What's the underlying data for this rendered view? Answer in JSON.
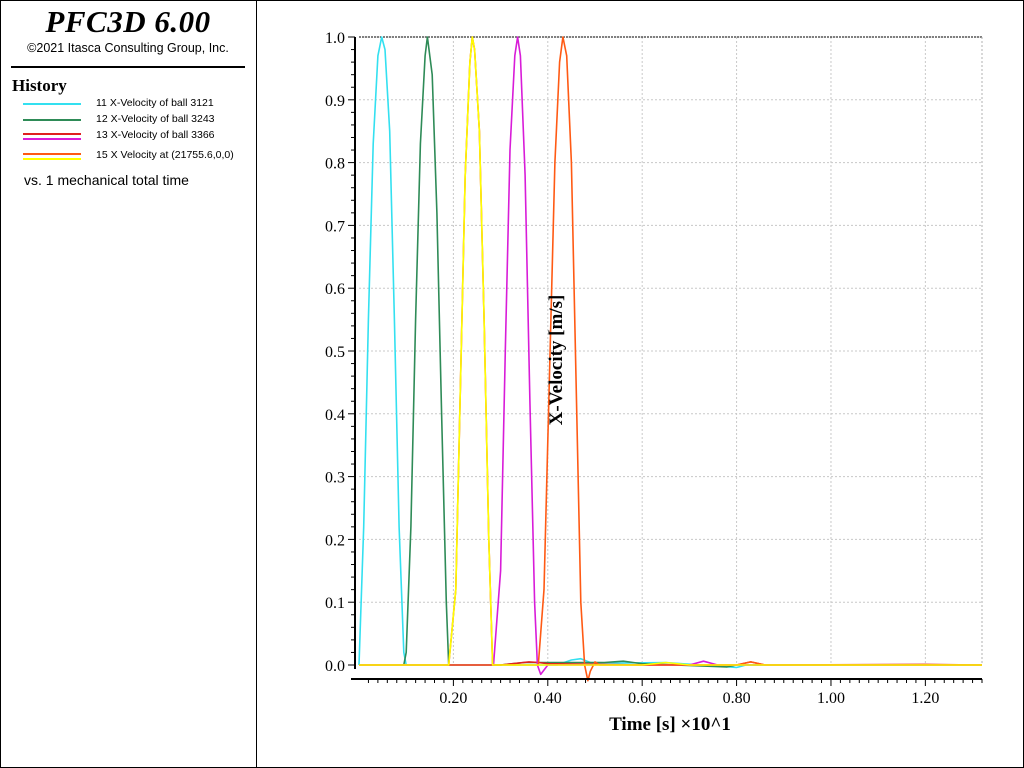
{
  "app": {
    "title": "PFC3D 6.00",
    "copyright": "©2021 Itasca Consulting Group, Inc."
  },
  "legend": {
    "heading": "History",
    "items": [
      {
        "label": "11 X-Velocity of ball 3121",
        "colors": [
          "#33e0f0"
        ]
      },
      {
        "label": "12 X-Velocity of ball 3243",
        "colors": [
          "#2e8b57"
        ]
      },
      {
        "label": "13 X-Velocity of ball 3366",
        "colors": [
          "#e02020",
          "#d81cd8"
        ]
      },
      {
        "label": "15 X Velocity at (21755.6,0,0)",
        "colors": [
          "#ff5a14",
          "#ffff00"
        ]
      }
    ],
    "vs_label": "vs. 1 mechanical total time"
  },
  "chart_data": {
    "type": "line",
    "xlabel": "Time [s] ×10^1",
    "ylabel": "X-Velocity [m/s]",
    "xlim": [
      0.0,
      1.32
    ],
    "ylim": [
      0.0,
      1.0
    ],
    "x_ticks": [
      0.2,
      0.4,
      0.6,
      0.8,
      1.0,
      1.2
    ],
    "x_tick_labels": [
      "0.20",
      "0.40",
      "0.60",
      "0.80",
      "1.00",
      "1.20"
    ],
    "y_ticks": [
      0.0,
      0.1,
      0.2,
      0.3,
      0.4,
      0.5,
      0.6,
      0.7,
      0.8,
      0.9,
      1.0
    ],
    "y_tick_labels": [
      "0.0",
      "0.1",
      "0.2",
      "0.3",
      "0.4",
      "0.5",
      "0.6",
      "0.7",
      "0.8",
      "0.9",
      "1.0"
    ],
    "grid": true,
    "series": [
      {
        "name": "11 X-Velocity of ball 3121",
        "color": "#33e0f0",
        "x": [
          0.0,
          0.01,
          0.02,
          0.03,
          0.04,
          0.048,
          0.055,
          0.065,
          0.075,
          0.085,
          0.095,
          0.1,
          0.2,
          0.42,
          0.45,
          0.47,
          0.49,
          0.55,
          0.65,
          0.8,
          0.82,
          1.0,
          1.32
        ],
        "y": [
          0.0,
          0.22,
          0.55,
          0.83,
          0.97,
          1.0,
          0.98,
          0.85,
          0.55,
          0.22,
          0.02,
          0.0,
          0.0,
          0.0,
          0.008,
          0.01,
          0.004,
          0.003,
          0.004,
          -0.004,
          0.0,
          0.0,
          0.0
        ]
      },
      {
        "name": "12 X-Velocity of ball 3243",
        "color": "#2e8b57",
        "x": [
          0.0,
          0.095,
          0.1,
          0.11,
          0.12,
          0.13,
          0.14,
          0.145,
          0.155,
          0.165,
          0.175,
          0.185,
          0.19,
          0.3,
          0.35,
          0.52,
          0.56,
          0.6,
          0.78,
          0.8,
          1.32
        ],
        "y": [
          0.0,
          0.0,
          0.02,
          0.22,
          0.55,
          0.83,
          0.97,
          1.0,
          0.94,
          0.72,
          0.4,
          0.1,
          0.0,
          0.0,
          0.004,
          0.004,
          0.006,
          0.002,
          -0.003,
          0.0,
          0.0
        ]
      },
      {
        "name": "13 X-Velocity of ball 3366",
        "color": "#e02020",
        "x": [
          0.0,
          0.19,
          0.205,
          0.215,
          0.225,
          0.235,
          0.24,
          0.245,
          0.255,
          0.265,
          0.275,
          0.283,
          0.3,
          0.36,
          0.38,
          0.4,
          0.6,
          0.8,
          0.83,
          0.86,
          1.2,
          1.32
        ],
        "y": [
          0.0,
          0.0,
          0.12,
          0.45,
          0.78,
          0.96,
          1.0,
          0.98,
          0.85,
          0.55,
          0.2,
          0.0,
          0.0,
          0.005,
          0.004,
          0.002,
          0.0,
          0.0,
          0.005,
          0.0,
          0.001,
          0.0
        ]
      },
      {
        "name": "13 X-Velocity of ball 3366",
        "color": "#d81cd8",
        "x": [
          0.0,
          0.285,
          0.3,
          0.31,
          0.32,
          0.33,
          0.336,
          0.342,
          0.352,
          0.362,
          0.372,
          0.378,
          0.385,
          0.4,
          0.45,
          0.7,
          0.73,
          0.76,
          0.85,
          1.0,
          1.32
        ],
        "y": [
          0.0,
          0.0,
          0.15,
          0.5,
          0.82,
          0.97,
          1.0,
          0.97,
          0.78,
          0.42,
          0.1,
          0.0,
          -0.015,
          0.0,
          0.0,
          0.0,
          0.006,
          0.0,
          0.0,
          0.0,
          0.0
        ]
      },
      {
        "name": "15 X Velocity at (21755.6,0,0)",
        "color": "#ff5a14",
        "x": [
          0.0,
          0.38,
          0.392,
          0.405,
          0.415,
          0.425,
          0.432,
          0.44,
          0.45,
          0.46,
          0.47,
          0.478,
          0.485,
          0.49,
          0.5,
          0.51,
          0.55,
          0.8,
          0.83,
          0.86,
          1.32
        ],
        "y": [
          0.0,
          0.0,
          0.12,
          0.5,
          0.8,
          0.96,
          1.0,
          0.97,
          0.8,
          0.45,
          0.1,
          0.0,
          -0.025,
          -0.01,
          0.005,
          0.0,
          0.0,
          0.0,
          0.005,
          0.0,
          0.0
        ]
      },
      {
        "name": "15 X Velocity at (21755.6,0,0)",
        "color": "#ffff00",
        "x": [
          0.0,
          0.19,
          0.205,
          0.215,
          0.225,
          0.235,
          0.24,
          0.245,
          0.255,
          0.265,
          0.275,
          0.283,
          0.3,
          0.6,
          0.65,
          0.7,
          1.32
        ],
        "y": [
          0.0,
          0.0,
          0.12,
          0.45,
          0.78,
          0.96,
          1.0,
          0.98,
          0.85,
          0.55,
          0.2,
          0.0,
          0.0,
          0.0,
          0.004,
          0.0,
          0.0
        ]
      }
    ]
  }
}
